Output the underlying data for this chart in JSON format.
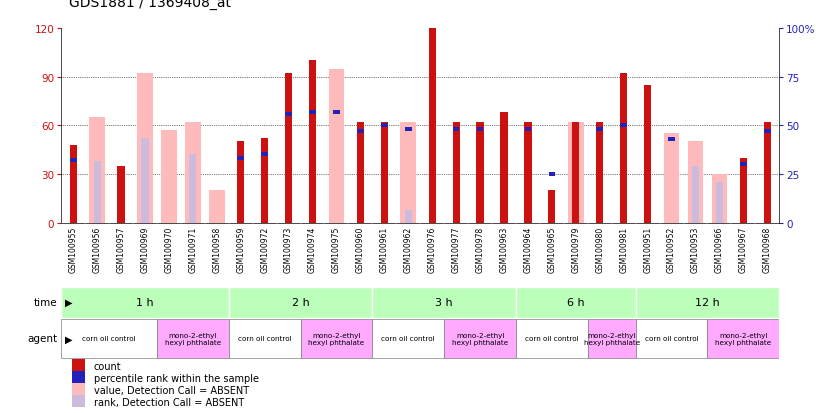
{
  "title": "GDS1881 / 1369408_at",
  "samples": [
    "GSM100955",
    "GSM100956",
    "GSM100957",
    "GSM100969",
    "GSM100970",
    "GSM100971",
    "GSM100958",
    "GSM100959",
    "GSM100972",
    "GSM100973",
    "GSM100974",
    "GSM100975",
    "GSM100960",
    "GSM100961",
    "GSM100962",
    "GSM100976",
    "GSM100977",
    "GSM100978",
    "GSM100963",
    "GSM100964",
    "GSM100965",
    "GSM100979",
    "GSM100980",
    "GSM100981",
    "GSM100951",
    "GSM100952",
    "GSM100953",
    "GSM100966",
    "GSM100967",
    "GSM100968"
  ],
  "count": [
    48,
    0,
    35,
    0,
    0,
    0,
    0,
    50,
    52,
    92,
    100,
    0,
    62,
    62,
    0,
    120,
    62,
    62,
    68,
    62,
    20,
    62,
    62,
    92,
    85,
    0,
    0,
    0,
    40,
    62
  ],
  "percentile_rank": [
    32,
    0,
    0,
    0,
    0,
    0,
    0,
    33,
    35,
    56,
    57,
    57,
    47,
    50,
    48,
    0,
    48,
    48,
    0,
    48,
    25,
    0,
    48,
    50,
    0,
    43,
    0,
    0,
    30,
    47
  ],
  "absent_value": [
    0,
    65,
    0,
    92,
    57,
    62,
    20,
    0,
    0,
    0,
    0,
    95,
    0,
    0,
    62,
    0,
    0,
    0,
    0,
    0,
    0,
    62,
    0,
    0,
    0,
    55,
    50,
    30,
    0,
    0
  ],
  "absent_rank": [
    40,
    38,
    0,
    52,
    0,
    42,
    0,
    0,
    0,
    0,
    57,
    0,
    0,
    0,
    8,
    0,
    0,
    0,
    0,
    0,
    0,
    0,
    0,
    0,
    0,
    0,
    35,
    25,
    0,
    0
  ],
  "time_groups": [
    {
      "label": "1 h",
      "start": 0,
      "end": 7
    },
    {
      "label": "2 h",
      "start": 7,
      "end": 13
    },
    {
      "label": "3 h",
      "start": 13,
      "end": 19
    },
    {
      "label": "6 h",
      "start": 19,
      "end": 24
    },
    {
      "label": "12 h",
      "start": 24,
      "end": 30
    }
  ],
  "agent_groups": [
    {
      "label": "corn oil control",
      "start": 0,
      "end": 4,
      "corn": true
    },
    {
      "label": "mono-2-ethyl\nhexyl phthalate",
      "start": 4,
      "end": 7,
      "corn": false
    },
    {
      "label": "corn oil control",
      "start": 7,
      "end": 10,
      "corn": true
    },
    {
      "label": "mono-2-ethyl\nhexyl phthalate",
      "start": 10,
      "end": 13,
      "corn": false
    },
    {
      "label": "corn oil control",
      "start": 13,
      "end": 16,
      "corn": true
    },
    {
      "label": "mono-2-ethyl\nhexyl phthalate",
      "start": 16,
      "end": 19,
      "corn": false
    },
    {
      "label": "corn oil control",
      "start": 19,
      "end": 22,
      "corn": true
    },
    {
      "label": "mono-2-ethyl\nhexyl phthalate",
      "start": 22,
      "end": 24,
      "corn": false
    },
    {
      "label": "corn oil control",
      "start": 24,
      "end": 27,
      "corn": true
    },
    {
      "label": "mono-2-ethyl\nhexyl phthalate",
      "start": 27,
      "end": 30,
      "corn": false
    }
  ],
  "color_red": "#cc1111",
  "color_pink": "#ffbbbb",
  "color_blue": "#2222bb",
  "color_light_pink": "#ccbbdd",
  "color_time_even": "#bbffbb",
  "color_time_odd": "#88ee88",
  "color_agent_corn": "#ffffff",
  "color_agent_mono": "#ffaaff",
  "color_xtick_bg": "#cccccc",
  "ylim_left": [
    0,
    120
  ],
  "ylim_right": [
    0,
    100
  ],
  "yticks_left": [
    0,
    30,
    60,
    90,
    120
  ],
  "yticks_right": [
    0,
    25,
    50,
    75,
    100
  ]
}
